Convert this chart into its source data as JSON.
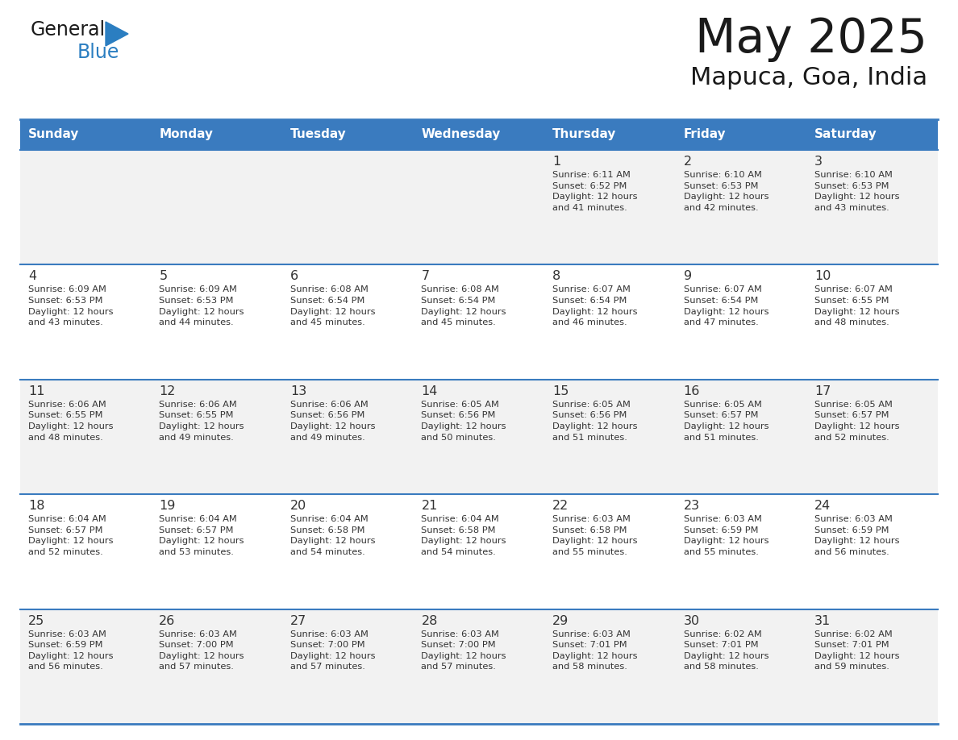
{
  "title": "May 2025",
  "subtitle": "Mapuca, Goa, India",
  "header_bg_color": "#3A7BBF",
  "header_text_color": "#FFFFFF",
  "day_names": [
    "Sunday",
    "Monday",
    "Tuesday",
    "Wednesday",
    "Thursday",
    "Friday",
    "Saturday"
  ],
  "row1_bg": "#F2F2F2",
  "row2_bg": "#FFFFFF",
  "cell_text_color": "#333333",
  "days": [
    {
      "day": null,
      "info": null
    },
    {
      "day": null,
      "info": null
    },
    {
      "day": null,
      "info": null
    },
    {
      "day": null,
      "info": null
    },
    {
      "day": 1,
      "info": "Sunrise: 6:11 AM\nSunset: 6:52 PM\nDaylight: 12 hours\nand 41 minutes."
    },
    {
      "day": 2,
      "info": "Sunrise: 6:10 AM\nSunset: 6:53 PM\nDaylight: 12 hours\nand 42 minutes."
    },
    {
      "day": 3,
      "info": "Sunrise: 6:10 AM\nSunset: 6:53 PM\nDaylight: 12 hours\nand 43 minutes."
    },
    {
      "day": 4,
      "info": "Sunrise: 6:09 AM\nSunset: 6:53 PM\nDaylight: 12 hours\nand 43 minutes."
    },
    {
      "day": 5,
      "info": "Sunrise: 6:09 AM\nSunset: 6:53 PM\nDaylight: 12 hours\nand 44 minutes."
    },
    {
      "day": 6,
      "info": "Sunrise: 6:08 AM\nSunset: 6:54 PM\nDaylight: 12 hours\nand 45 minutes."
    },
    {
      "day": 7,
      "info": "Sunrise: 6:08 AM\nSunset: 6:54 PM\nDaylight: 12 hours\nand 45 minutes."
    },
    {
      "day": 8,
      "info": "Sunrise: 6:07 AM\nSunset: 6:54 PM\nDaylight: 12 hours\nand 46 minutes."
    },
    {
      "day": 9,
      "info": "Sunrise: 6:07 AM\nSunset: 6:54 PM\nDaylight: 12 hours\nand 47 minutes."
    },
    {
      "day": 10,
      "info": "Sunrise: 6:07 AM\nSunset: 6:55 PM\nDaylight: 12 hours\nand 48 minutes."
    },
    {
      "day": 11,
      "info": "Sunrise: 6:06 AM\nSunset: 6:55 PM\nDaylight: 12 hours\nand 48 minutes."
    },
    {
      "day": 12,
      "info": "Sunrise: 6:06 AM\nSunset: 6:55 PM\nDaylight: 12 hours\nand 49 minutes."
    },
    {
      "day": 13,
      "info": "Sunrise: 6:06 AM\nSunset: 6:56 PM\nDaylight: 12 hours\nand 49 minutes."
    },
    {
      "day": 14,
      "info": "Sunrise: 6:05 AM\nSunset: 6:56 PM\nDaylight: 12 hours\nand 50 minutes."
    },
    {
      "day": 15,
      "info": "Sunrise: 6:05 AM\nSunset: 6:56 PM\nDaylight: 12 hours\nand 51 minutes."
    },
    {
      "day": 16,
      "info": "Sunrise: 6:05 AM\nSunset: 6:57 PM\nDaylight: 12 hours\nand 51 minutes."
    },
    {
      "day": 17,
      "info": "Sunrise: 6:05 AM\nSunset: 6:57 PM\nDaylight: 12 hours\nand 52 minutes."
    },
    {
      "day": 18,
      "info": "Sunrise: 6:04 AM\nSunset: 6:57 PM\nDaylight: 12 hours\nand 52 minutes."
    },
    {
      "day": 19,
      "info": "Sunrise: 6:04 AM\nSunset: 6:57 PM\nDaylight: 12 hours\nand 53 minutes."
    },
    {
      "day": 20,
      "info": "Sunrise: 6:04 AM\nSunset: 6:58 PM\nDaylight: 12 hours\nand 54 minutes."
    },
    {
      "day": 21,
      "info": "Sunrise: 6:04 AM\nSunset: 6:58 PM\nDaylight: 12 hours\nand 54 minutes."
    },
    {
      "day": 22,
      "info": "Sunrise: 6:03 AM\nSunset: 6:58 PM\nDaylight: 12 hours\nand 55 minutes."
    },
    {
      "day": 23,
      "info": "Sunrise: 6:03 AM\nSunset: 6:59 PM\nDaylight: 12 hours\nand 55 minutes."
    },
    {
      "day": 24,
      "info": "Sunrise: 6:03 AM\nSunset: 6:59 PM\nDaylight: 12 hours\nand 56 minutes."
    },
    {
      "day": 25,
      "info": "Sunrise: 6:03 AM\nSunset: 6:59 PM\nDaylight: 12 hours\nand 56 minutes."
    },
    {
      "day": 26,
      "info": "Sunrise: 6:03 AM\nSunset: 7:00 PM\nDaylight: 12 hours\nand 57 minutes."
    },
    {
      "day": 27,
      "info": "Sunrise: 6:03 AM\nSunset: 7:00 PM\nDaylight: 12 hours\nand 57 minutes."
    },
    {
      "day": 28,
      "info": "Sunrise: 6:03 AM\nSunset: 7:00 PM\nDaylight: 12 hours\nand 57 minutes."
    },
    {
      "day": 29,
      "info": "Sunrise: 6:03 AM\nSunset: 7:01 PM\nDaylight: 12 hours\nand 58 minutes."
    },
    {
      "day": 30,
      "info": "Sunrise: 6:02 AM\nSunset: 7:01 PM\nDaylight: 12 hours\nand 58 minutes."
    },
    {
      "day": 31,
      "info": "Sunrise: 6:02 AM\nSunset: 7:01 PM\nDaylight: 12 hours\nand 59 minutes."
    }
  ],
  "logo_general_color": "#1a1a1a",
  "logo_blue_color": "#2B7EC1",
  "logo_triangle_color": "#2B7EC1",
  "title_color": "#1a1a1a",
  "subtitle_color": "#1a1a1a",
  "border_color": "#3A7BBF",
  "fig_width": 11.88,
  "fig_height": 9.18,
  "fig_dpi": 100
}
